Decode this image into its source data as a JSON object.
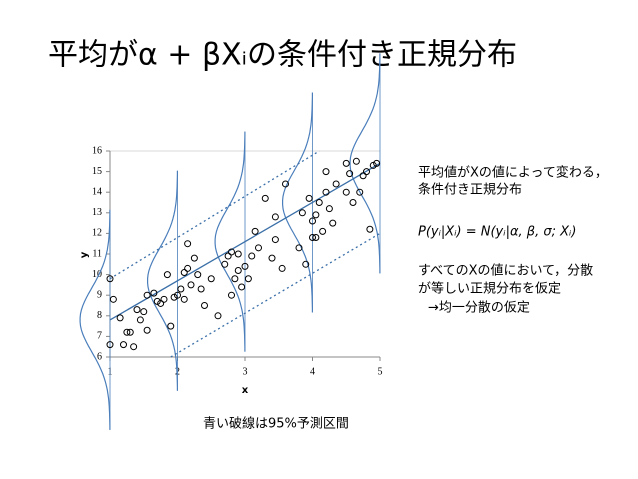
{
  "title": "平均がα + βXᵢの条件付き正規分布",
  "chart_data": {
    "type": "scatter",
    "x_label": "x",
    "y_label": "y",
    "xlim": [
      1,
      5
    ],
    "xticks": [
      1,
      2,
      3,
      4,
      5
    ],
    "ylim": [
      6,
      16
    ],
    "yticks": [
      6,
      7,
      8,
      9,
      10,
      11,
      12,
      13,
      14,
      15,
      16
    ],
    "color": "#000000",
    "x": [
      1.0,
      1.0,
      1.05,
      1.15,
      1.2,
      1.25,
      1.3,
      1.35,
      1.4,
      1.45,
      1.5,
      1.55,
      1.55,
      1.65,
      1.7,
      1.75,
      1.8,
      1.85,
      1.9,
      1.95,
      2.0,
      2.05,
      2.1,
      2.1,
      2.15,
      2.15,
      2.2,
      2.25,
      2.3,
      2.35,
      2.4,
      2.5,
      2.6,
      2.7,
      2.75,
      2.8,
      2.8,
      2.85,
      2.9,
      2.9,
      2.95,
      3.0,
      3.05,
      3.1,
      3.15,
      3.2,
      3.3,
      3.4,
      3.45,
      3.45,
      3.55,
      3.6,
      3.8,
      3.85,
      3.9,
      3.95,
      4.0,
      4.0,
      4.05,
      4.05,
      4.1,
      4.15,
      4.2,
      4.2,
      4.25,
      4.3,
      4.35,
      4.5,
      4.5,
      4.55,
      4.6,
      4.65,
      4.7,
      4.75,
      4.8,
      4.85,
      4.9,
      4.95
    ],
    "y": [
      9.8,
      6.6,
      8.8,
      7.9,
      6.6,
      7.2,
      7.2,
      6.5,
      8.3,
      7.8,
      8.2,
      9.0,
      7.3,
      9.1,
      8.7,
      8.6,
      8.8,
      10.0,
      7.5,
      8.9,
      9.0,
      9.3,
      10.1,
      8.8,
      11.5,
      10.3,
      9.5,
      10.8,
      10.0,
      9.3,
      8.5,
      9.8,
      8.0,
      10.5,
      10.9,
      11.1,
      9.0,
      9.8,
      11.0,
      10.2,
      9.4,
      10.4,
      9.8,
      10.9,
      12.1,
      11.3,
      13.7,
      10.8,
      11.7,
      12.8,
      10.3,
      14.4,
      11.3,
      13.0,
      10.5,
      13.7,
      12.6,
      11.8,
      12.9,
      11.8,
      13.5,
      12.1,
      14.0,
      15.0,
      13.2,
      12.5,
      14.4,
      14.0,
      15.4,
      14.9,
      13.5,
      15.5,
      14.0,
      14.8,
      15.0,
      12.2,
      15.3,
      15.4
    ],
    "lines": [
      {
        "style": "solid",
        "color": "#3a6fa8",
        "x": [
          1,
          5
        ],
        "y": [
          7.8,
          15.4
        ]
      },
      {
        "style": "dashed",
        "color": "#3a6fa8",
        "x": [
          1.9,
          5
        ],
        "y": [
          6,
          12.0
        ]
      },
      {
        "style": "dashed",
        "color": "#3a6fa8",
        "x": [
          1,
          4.1
        ],
        "y": [
          9.8,
          16
        ]
      }
    ]
  },
  "notes": [
    "平均値がXの値によって変わる，",
    "条件付き正規分布",
    "P(yᵢ|Xᵢ) = N(yᵢ|α, β, σ; Xᵢ)",
    "すべてのXの値において，分散",
    "が等しい正規分布を仮定",
    "→均一分散の仮定"
  ],
  "caption": "青い破線は95%予測区間"
}
